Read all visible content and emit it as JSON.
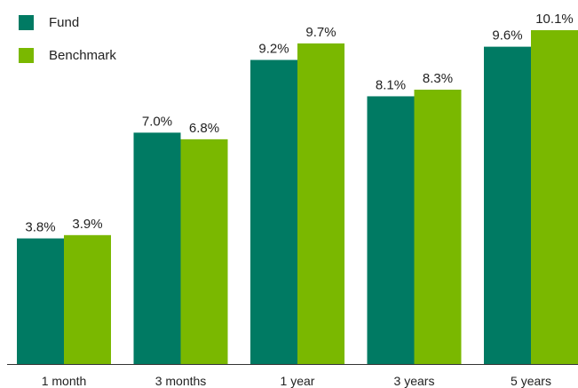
{
  "chart_data": {
    "type": "bar",
    "categories": [
      "1 month",
      "3 months",
      "1 year",
      "3 years",
      "5 years"
    ],
    "series": [
      {
        "name": "Fund",
        "color": "#007a63",
        "values": [
          3.8,
          7.0,
          9.2,
          8.1,
          9.6
        ],
        "labels": [
          "3.8%",
          "7.0%",
          "9.2%",
          "8.1%",
          "9.6%"
        ]
      },
      {
        "name": "Benchmark",
        "color": "#7ab800",
        "values": [
          3.9,
          6.8,
          9.7,
          8.3,
          10.1
        ],
        "labels": [
          "3.9%",
          "6.8%",
          "9.7%",
          "8.3%",
          "10.1%"
        ]
      }
    ],
    "ylim": [
      0,
      10.1
    ],
    "grid": false,
    "legend": "top-left",
    "title": "",
    "xlabel": "",
    "ylabel": ""
  }
}
